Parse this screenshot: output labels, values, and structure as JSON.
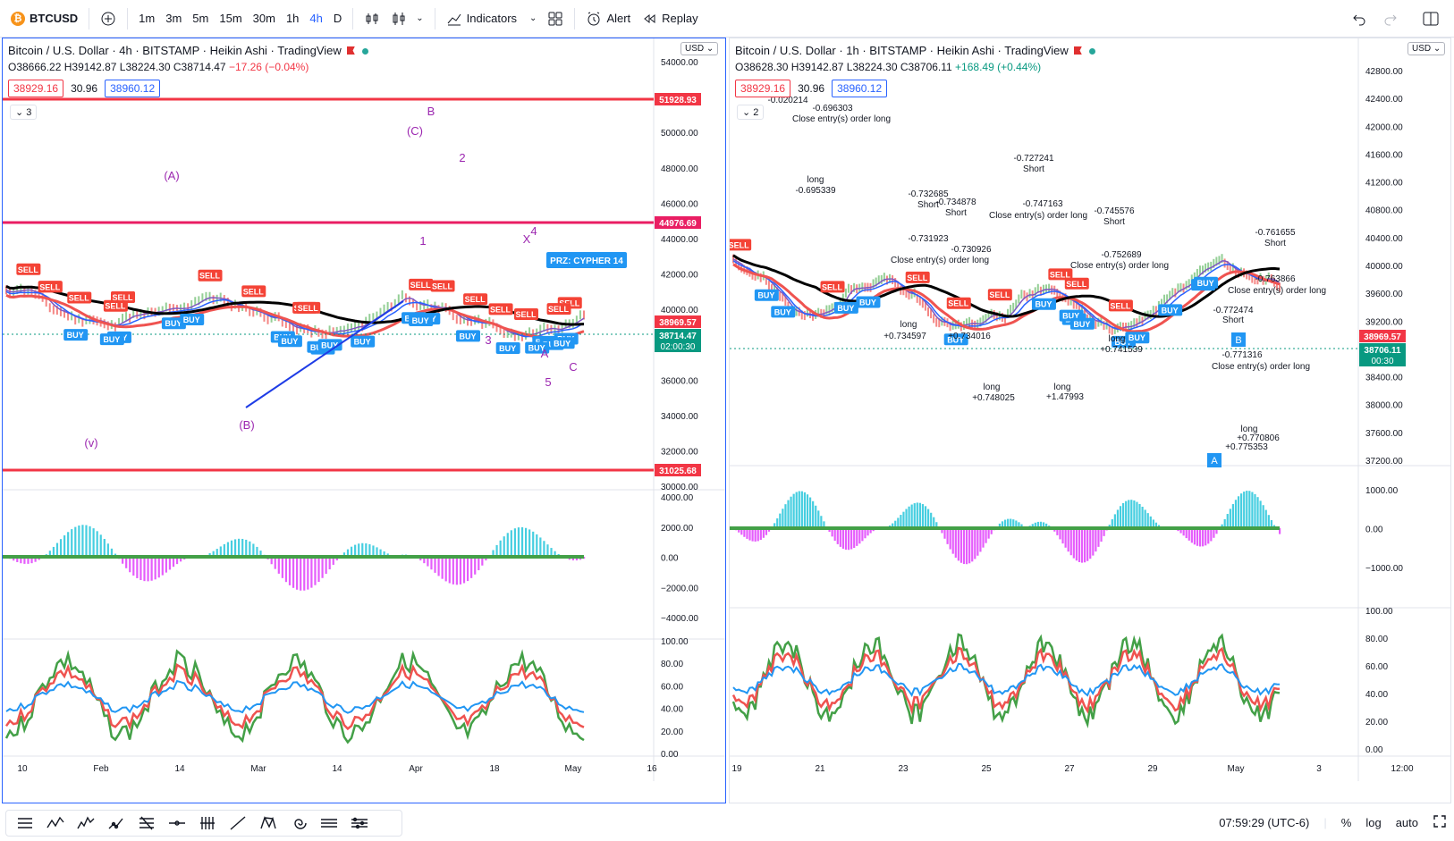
{
  "toolbar": {
    "symbol": "BTCUSD",
    "intervals": [
      "1m",
      "3m",
      "5m",
      "15m",
      "30m",
      "1h",
      "4h",
      "D"
    ],
    "active_interval": "4h",
    "indicators_label": "Indicators",
    "alert_label": "Alert",
    "replay_label": "Replay"
  },
  "left_chart": {
    "title": "Bitcoin / U.S. Dollar · 4h · BITSTAMP · Heikin Ashi · TradingView",
    "ohlc": {
      "o": "O38666.22",
      "h": "H39142.87",
      "l": "L38224.30",
      "c": "C38714.47",
      "chg": "−17.26 (−0.04%)"
    },
    "bid": "38929.16",
    "spread": "30.96",
    "ask": "38960.12",
    "collapse": "3",
    "currency": "USD",
    "price_ticks": [
      "54000.00",
      "52000.00",
      "50000.00",
      "48000.00",
      "46000.00",
      "44000.00",
      "42000.00",
      "40000.00",
      "38000.00",
      "36000.00",
      "34000.00",
      "32000.00",
      "30000.00"
    ],
    "price_labels": {
      "upper_line": "51928.93",
      "mid_line": "44976.69",
      "last_a": "38969.57",
      "last_b": "38714.47",
      "countdown": "02:00:30",
      "lower_line": "31025.68"
    },
    "macd_ticks": [
      "4000.00",
      "2000.00",
      "0.00",
      "−2000.00",
      "−4000.00"
    ],
    "osc_ticks": [
      "100.00",
      "80.00",
      "60.00",
      "40.00",
      "20.00",
      "0.00"
    ],
    "time_labels": [
      "10",
      "Feb",
      "14",
      "Mar",
      "14",
      "Apr",
      "18",
      "May",
      "16"
    ],
    "wave_labels": [
      "(A)",
      "(B)",
      "(C)",
      "(v)",
      "A",
      "B",
      "C",
      "X",
      "1",
      "2",
      "3",
      "4",
      "5"
    ],
    "prz_label": "PRZ: CYPHER 14",
    "signal_buy": "BUY",
    "signal_sell": "SELL"
  },
  "right_chart": {
    "title": "Bitcoin / U.S. Dollar · 1h · BITSTAMP · Heikin Ashi · TradingView",
    "ohlc": {
      "o": "O38628.30",
      "h": "H39142.87",
      "l": "L38224.30",
      "c": "C38706.11",
      "chg": "+168.49 (+0.44%)"
    },
    "bid": "38929.16",
    "spread": "30.96",
    "ask": "38960.12",
    "collapse": "2",
    "currency": "USD",
    "price_ticks": [
      "42800.00",
      "42400.00",
      "42000.00",
      "41600.00",
      "41200.00",
      "40800.00",
      "40400.00",
      "40000.00",
      "39600.00",
      "39200.00",
      "38800.00",
      "38400.00",
      "38000.00",
      "37600.00",
      "37200.00"
    ],
    "price_labels": {
      "last_a": "38969.57",
      "last_b": "38706.11",
      "countdown": "00:30"
    },
    "macd_ticks": [
      "1000.00",
      "0.00",
      "−1000.00"
    ],
    "osc_ticks": [
      "100.00",
      "80.00",
      "60.00",
      "40.00",
      "20.00",
      "0.00"
    ],
    "time_labels": [
      "19",
      "21",
      "23",
      "25",
      "27",
      "29",
      "May",
      "3",
      "12:00"
    ],
    "annotations": [
      "-0.727241",
      "Short",
      "-0.732685",
      "Short",
      "-0.734878",
      "Short",
      "Close entry(s) order long",
      "-0.747163",
      "-0.745576",
      "Short",
      "-0.731923",
      "Close entry(s) order long",
      "-0.730926",
      "-0.752689",
      "Close entry(s) order long",
      "long",
      "+0.734597",
      "+0.734016",
      "long",
      "+0.748025",
      "long",
      "+1.47993",
      "long",
      "+0.741539",
      "-0.772474",
      "Short",
      "-0.771316",
      "Close entry(s) order long",
      "-0.763866",
      "Close entry(s) order long",
      "-0.761655",
      "Short",
      "long",
      "+0.775353",
      "+0.770806",
      "-0.020214",
      "-0.696303",
      "Close entry(s) order long",
      "long",
      "-0.695339"
    ],
    "wave_labels": [
      "A",
      "B"
    ],
    "signal_buy": "BUY",
    "signal_sell": "SELL"
  },
  "bottom": {
    "clock": "07:59:29 (UTC-6)",
    "percent": "%",
    "log": "log",
    "auto": "auto"
  }
}
